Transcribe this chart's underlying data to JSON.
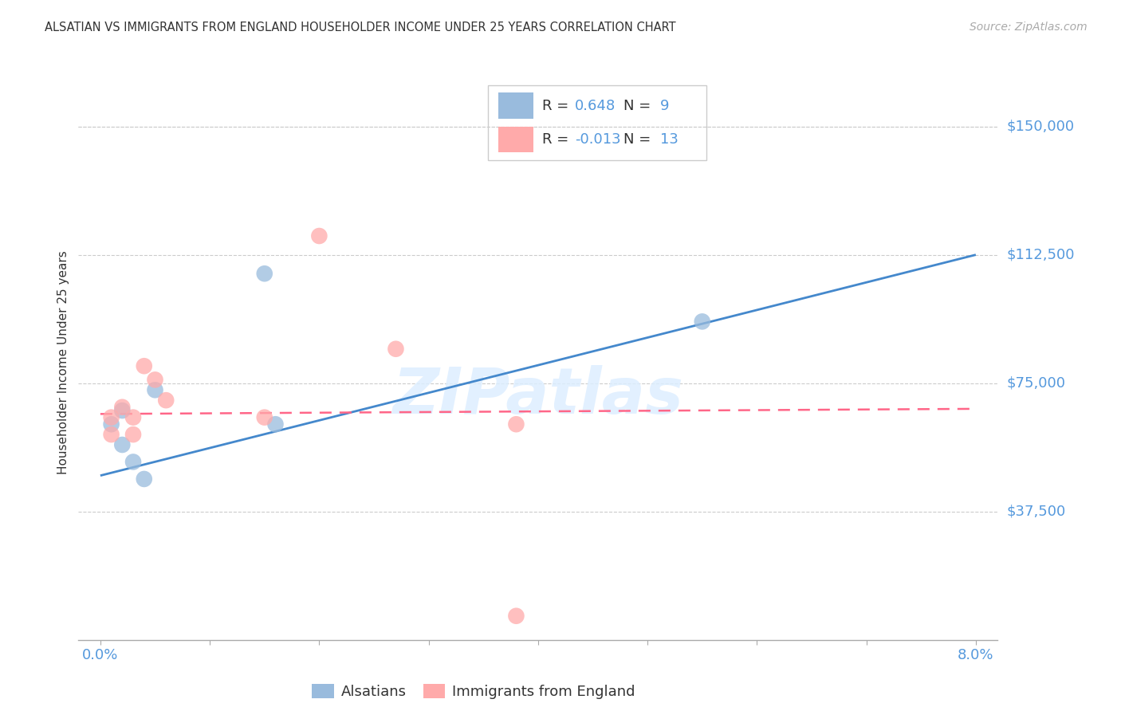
{
  "title": "ALSATIAN VS IMMIGRANTS FROM ENGLAND HOUSEHOLDER INCOME UNDER 25 YEARS CORRELATION CHART",
  "source": "Source: ZipAtlas.com",
  "ylabel": "Householder Income Under 25 years",
  "ytick_labels": [
    "$37,500",
    "$75,000",
    "$112,500",
    "$150,000"
  ],
  "ytick_values": [
    37500,
    75000,
    112500,
    150000
  ],
  "ymin": 0,
  "ymax": 162000,
  "xmin": 0.0,
  "xmax": 0.08,
  "legend_label1": "Alsatians",
  "legend_label2": "Immigrants from England",
  "r1": "0.648",
  "n1": "9",
  "r2": "-0.013",
  "n2": "13",
  "color_blue": "#99BBDD",
  "color_pink": "#FFAAAA",
  "color_line_blue": "#4488CC",
  "color_line_pink": "#FF6688",
  "color_axis_label": "#5599DD",
  "color_text_dark": "#333333",
  "color_grid": "#CCCCCC",
  "watermark_text": "ZIPatlas",
  "watermark_color": "#DDEEFF",
  "alsatian_x": [
    0.001,
    0.002,
    0.002,
    0.003,
    0.004,
    0.005,
    0.015,
    0.016,
    0.055
  ],
  "alsatian_y": [
    63000,
    57000,
    67000,
    52000,
    47000,
    73000,
    107000,
    63000,
    93000
  ],
  "england_x": [
    0.001,
    0.001,
    0.002,
    0.003,
    0.003,
    0.004,
    0.005,
    0.006,
    0.015,
    0.02,
    0.027,
    0.038,
    0.038
  ],
  "england_y": [
    60000,
    65000,
    68000,
    60000,
    65000,
    80000,
    76000,
    70000,
    65000,
    118000,
    85000,
    63000,
    7000
  ],
  "blue_line_x": [
    0.0,
    0.08
  ],
  "blue_line_y": [
    48000,
    112500
  ],
  "pink_line_x": [
    0.0,
    0.08
  ],
  "pink_line_y": [
    66000,
    67500
  ]
}
